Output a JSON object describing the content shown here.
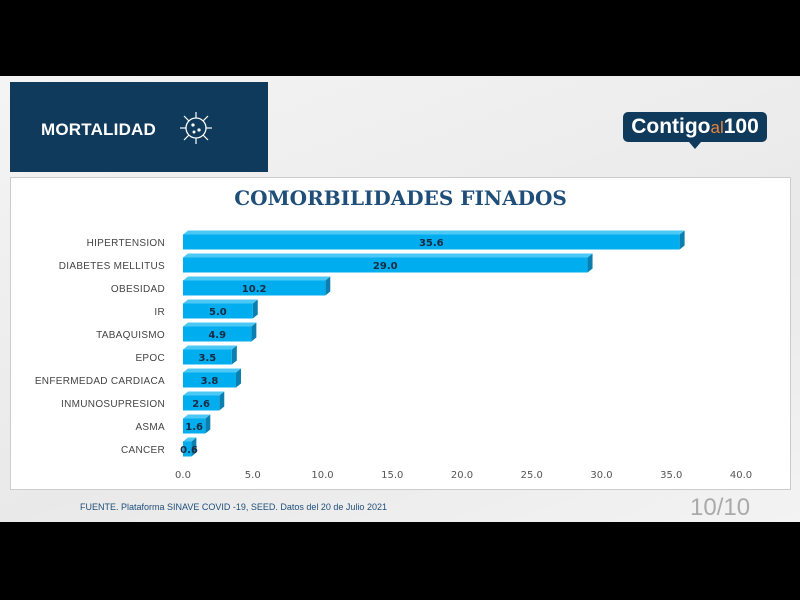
{
  "header": {
    "section": "MORTALIDAD",
    "logo_text": [
      "Contigo",
      "al",
      "100"
    ]
  },
  "chart_data": {
    "type": "bar",
    "orientation": "horizontal",
    "title": "COMORBILIDADES FINADOS",
    "categories": [
      "HIPERTENSION",
      "DIABETES MELLITUS",
      "OBESIDAD",
      "IR",
      "TABAQUISMO",
      "EPOC",
      "ENFERMEDAD CARDIACA",
      "INMUNOSUPRESION",
      "ASMA",
      "CANCER"
    ],
    "values": [
      35.6,
      29.0,
      10.2,
      5.0,
      4.9,
      3.5,
      3.8,
      2.6,
      1.6,
      0.6
    ],
    "data_labels": [
      "35.6",
      "29.0",
      "10.2",
      "5.0",
      "4.9",
      "3.5",
      "3.8",
      "2.6",
      "1.6",
      "0.6"
    ],
    "xlim": [
      0,
      40
    ],
    "xticks": [
      "0.0",
      "5.0",
      "10.0",
      "15.0",
      "20.0",
      "25.0",
      "30.0",
      "35.0",
      "40.0"
    ],
    "bar_color": "#00aeef",
    "grid": false
  },
  "footer": {
    "source": "FUENTE. Plataforma SINAVE COVID -19, SEED. Datos del 20 de Julio 2021",
    "page": "10/10"
  }
}
